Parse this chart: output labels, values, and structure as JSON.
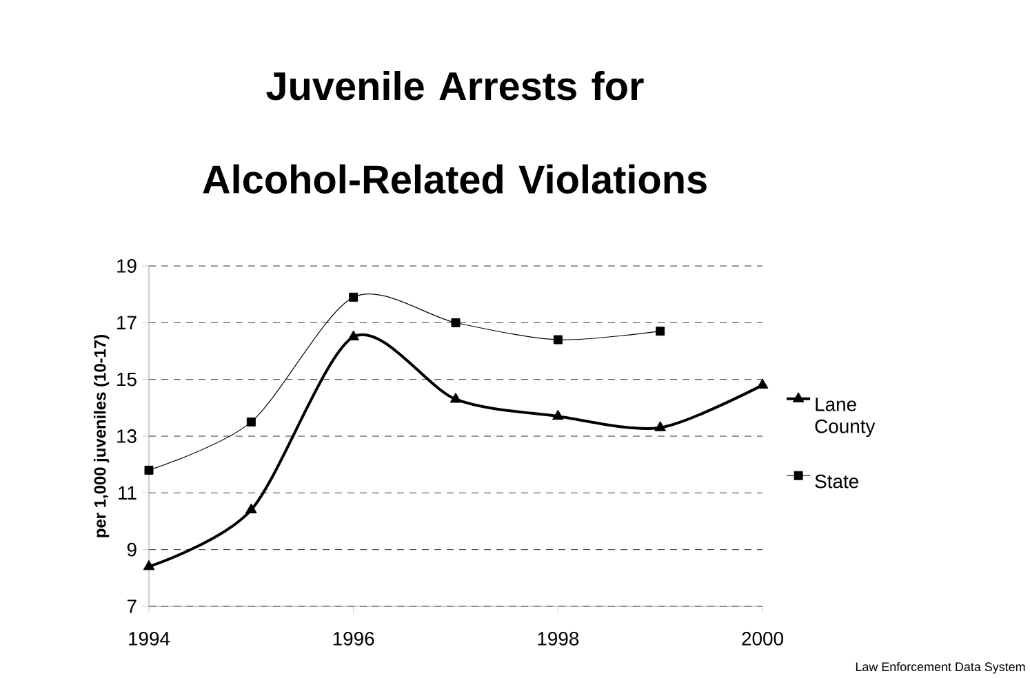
{
  "chart_data": {
    "type": "line",
    "title": "Juvenile Arrests for Alcohol-Related Violations",
    "ylabel": "per 1,000 juveniles (10-17)",
    "x": [
      1994,
      1995,
      1996,
      1997,
      1998,
      1999,
      2000
    ],
    "series": [
      {
        "name": "Lane County",
        "color": "#000000",
        "marker": "triangle",
        "values": [
          8.4,
          10.4,
          16.5,
          14.3,
          13.7,
          13.3,
          14.8
        ]
      },
      {
        "name": "State",
        "color": "#000000",
        "marker": "square",
        "values": [
          11.8,
          13.5,
          17.9,
          17.0,
          16.4,
          16.7,
          null
        ]
      }
    ],
    "xlim": [
      1994,
      2000
    ],
    "xticks": [
      1994,
      1996,
      1998,
      2000
    ],
    "ylim": [
      7,
      19
    ],
    "yticks": [
      7,
      9,
      11,
      13,
      15,
      17,
      19
    ],
    "grid": "y",
    "legend": "right",
    "annotations": [
      "Law Enforcement Data System"
    ]
  }
}
